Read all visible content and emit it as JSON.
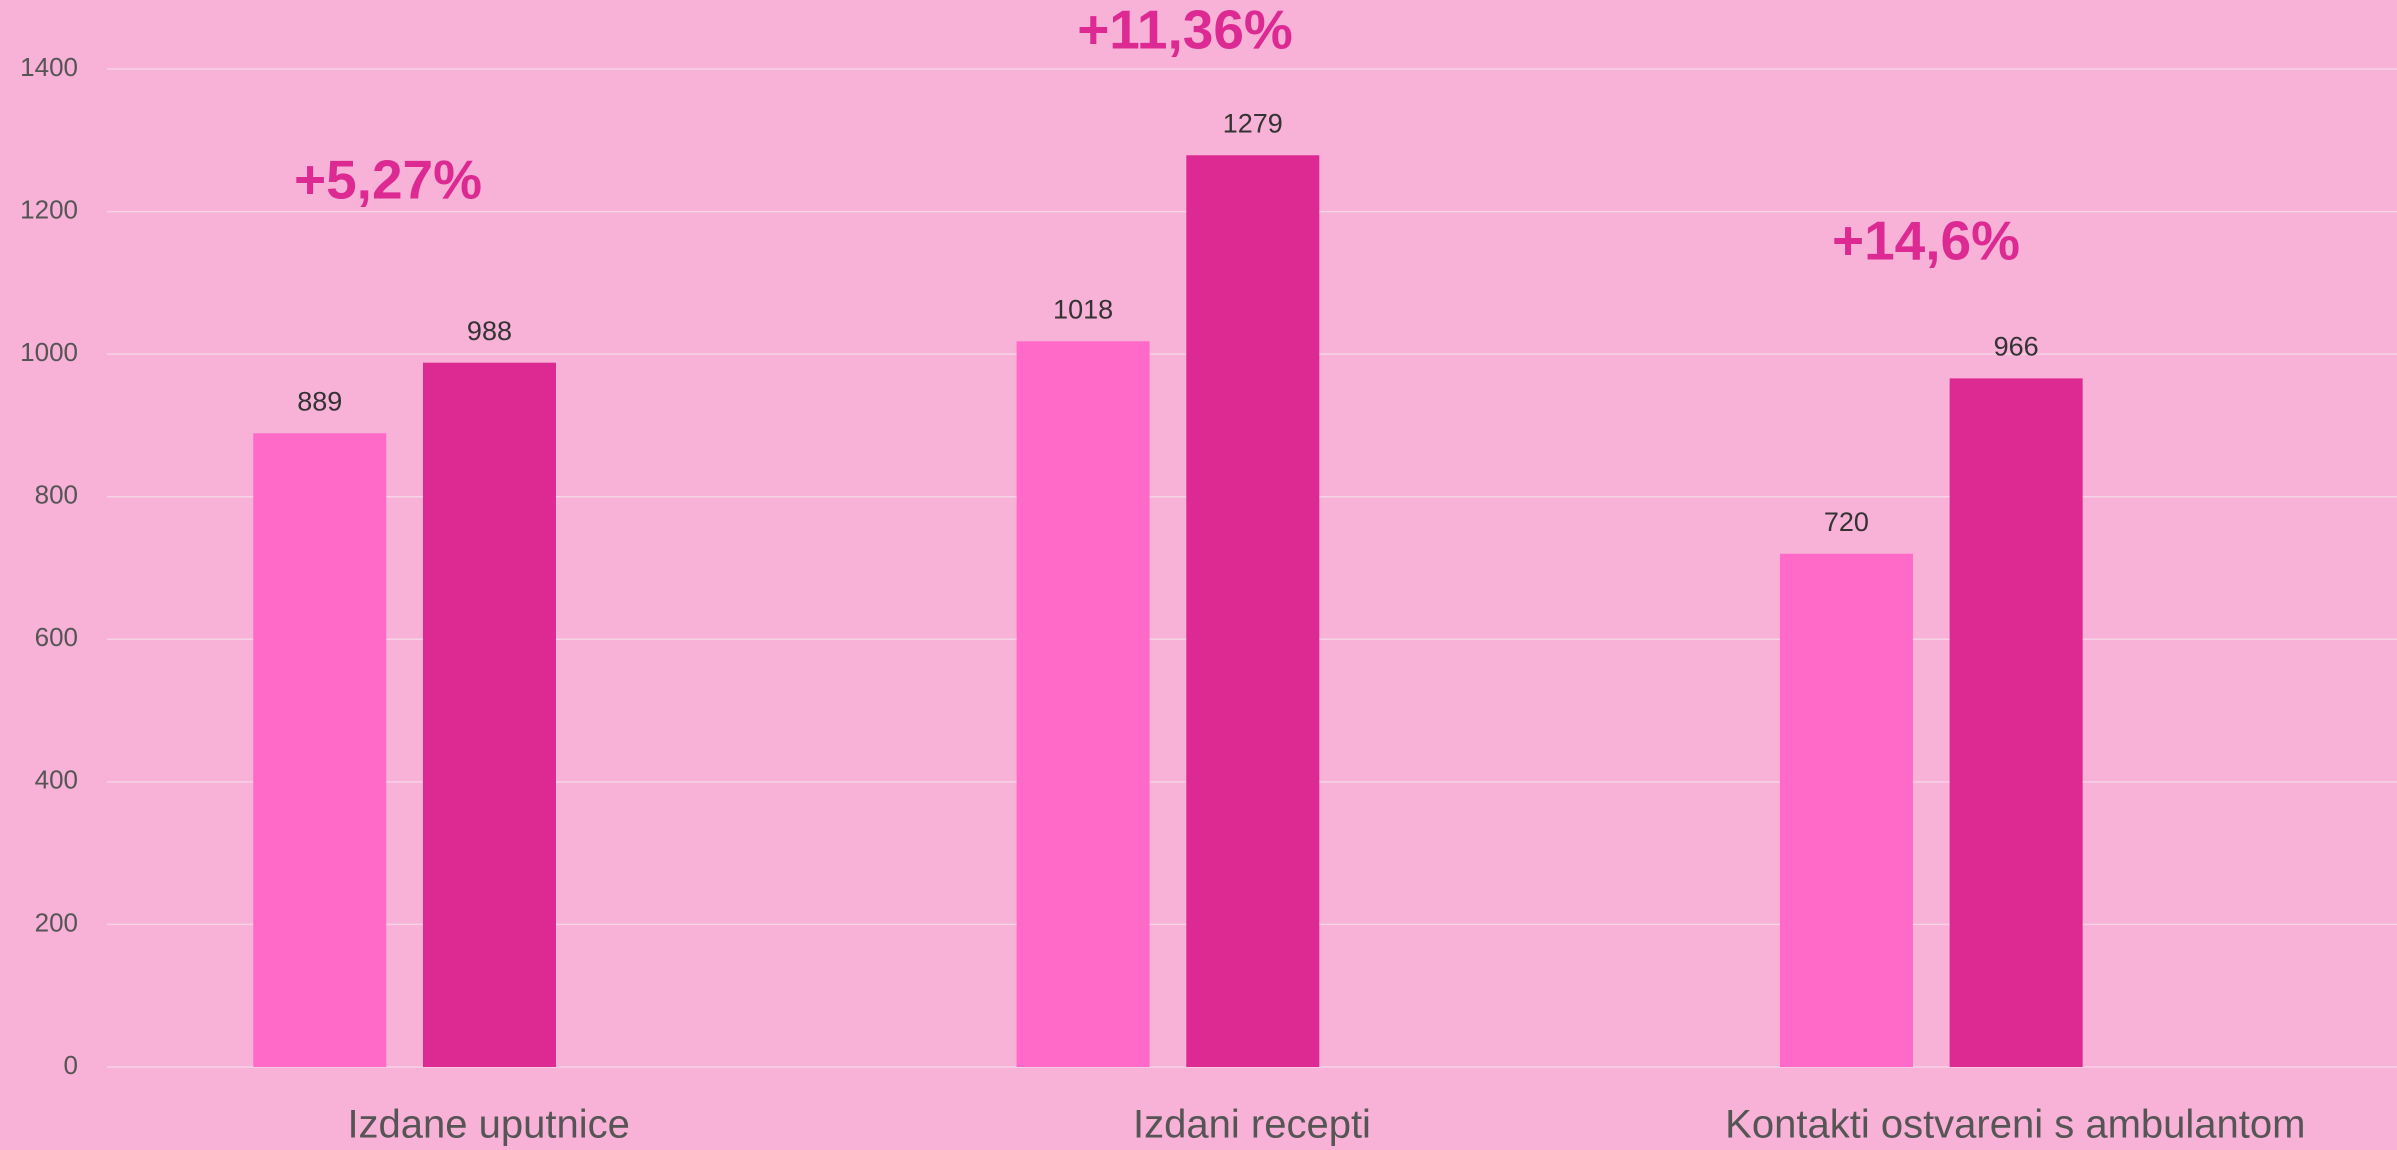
{
  "chart_data": {
    "type": "bar",
    "categories": [
      "Izdane uputnice",
      "Izdani recepti",
      "Kontakti ostvareni s ambulantom"
    ],
    "series": [
      {
        "color": "#ff69c8",
        "values": [
          889,
          1018,
          720
        ]
      },
      {
        "color": "#dd2a93",
        "values": [
          988,
          1279,
          966
        ]
      }
    ],
    "annotations": [
      "+5,27%",
      "+11,36%",
      "+14,6%"
    ],
    "ylim": [
      0,
      1400
    ],
    "yticks": [
      0,
      200,
      400,
      600,
      800,
      1000,
      1200,
      1400
    ],
    "grid": true
  }
}
